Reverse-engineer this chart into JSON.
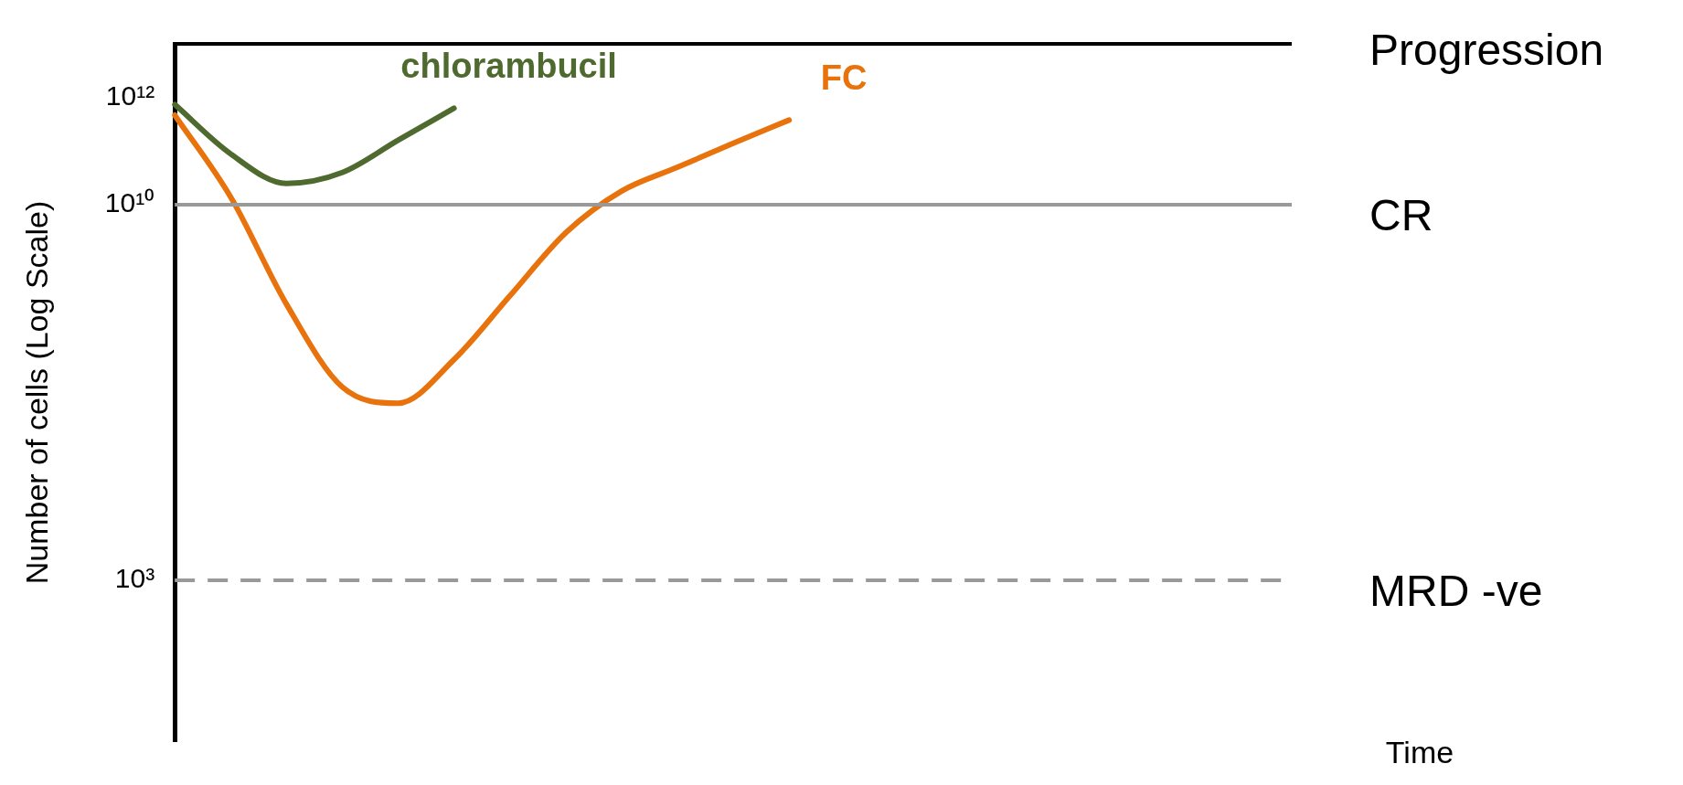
{
  "chart_data": {
    "type": "line",
    "ylabel": "Number of cells (Log Scale)",
    "xlabel": "Time",
    "categories": [
      null,
      null,
      null,
      null,
      null,
      null,
      null,
      null,
      null,
      null,
      null,
      null,
      null,
      null,
      null,
      null,
      null,
      null,
      null,
      null,
      null
    ],
    "series": [
      {
        "name": "chlorambucil",
        "color": "#4e6a2e",
        "values": [
          740000000000,
          89000000000,
          25000000000,
          40000000000,
          160000000000,
          630000000000,
          null,
          null,
          null,
          null,
          null,
          null,
          null,
          null,
          null,
          null,
          null,
          null,
          null,
          null,
          null
        ]
      },
      {
        "name": "FC",
        "color": "#e8720c",
        "values": [
          470000000000,
          14000000000,
          140000000,
          4000000,
          2000000,
          13000000,
          200000000,
          3000000000,
          18000000000,
          50000000000,
          140000000000,
          380000000000,
          null,
          null,
          null,
          null,
          null,
          null,
          null,
          null,
          null
        ]
      }
    ],
    "log": "y",
    "ylim": [
      1,
      10000000000000
    ],
    "yticks": [
      {
        "value": 1000,
        "label": "10³"
      },
      {
        "value": 10000000000,
        "label": "10¹⁰"
      },
      {
        "value": 1000000000000,
        "label": "10¹²"
      }
    ],
    "ref_lines": [
      {
        "axis": "y",
        "value": 10000000000000,
        "label": "Progression",
        "color": "#000000",
        "line_style": "solid"
      },
      {
        "axis": "y",
        "value": 10000000000,
        "label": "CR",
        "color": "#999999",
        "line_style": "solid"
      },
      {
        "axis": "y",
        "value": 1000,
        "label": "MRD -ve",
        "color": "#999999",
        "line_style": "dashed"
      }
    ],
    "tick_labels": "y",
    "grid": false,
    "legend": false,
    "marker": "none",
    "line_style": "solid"
  }
}
